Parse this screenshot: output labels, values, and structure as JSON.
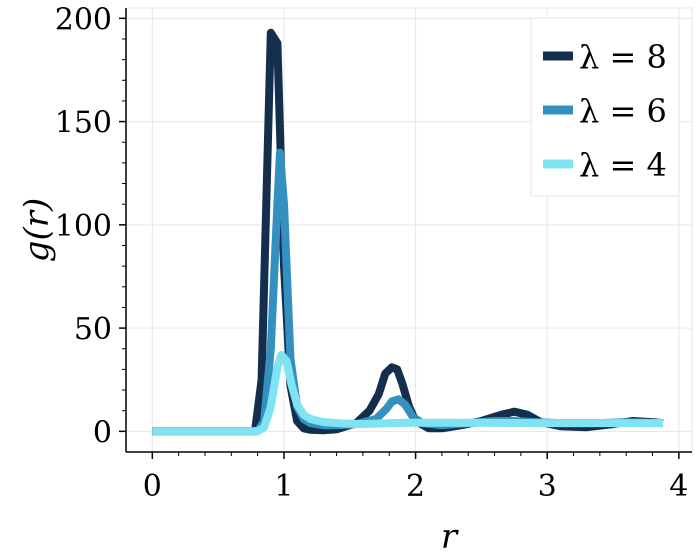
{
  "chart_data": {
    "type": "line",
    "xlabel": "r",
    "ylabel": "g(r)",
    "xlim": [
      -0.2,
      4.1
    ],
    "ylim": [
      -10,
      205
    ],
    "xticks": [
      0,
      1,
      2,
      3,
      4
    ],
    "yticks": [
      0,
      50,
      100,
      150,
      200
    ],
    "grid": true,
    "legend_position": "top-right",
    "series": [
      {
        "name": "λ = 8",
        "color": "#142f4d",
        "x": [
          0.0,
          0.78,
          0.83,
          0.87,
          0.9,
          0.95,
          1.0,
          1.05,
          1.1,
          1.15,
          1.2,
          1.3,
          1.4,
          1.55,
          1.65,
          1.72,
          1.77,
          1.82,
          1.86,
          1.9,
          1.95,
          2.0,
          2.1,
          2.2,
          2.35,
          2.5,
          2.65,
          2.75,
          2.85,
          2.95,
          3.1,
          3.3,
          3.5,
          3.65,
          3.8,
          3.88
        ],
        "y": [
          0,
          0,
          25,
          120,
          193,
          188,
          80,
          22,
          5,
          1.5,
          0.8,
          0.5,
          1,
          4,
          10,
          18,
          28,
          31,
          30,
          23,
          12,
          5,
          1.5,
          1.5,
          3,
          5,
          8,
          9.5,
          8,
          4.5,
          2.5,
          2,
          3.5,
          5,
          4.5,
          4
        ]
      },
      {
        "name": "λ = 6",
        "color": "#3491bf",
        "x": [
          0.0,
          0.8,
          0.85,
          0.9,
          0.95,
          0.97,
          1.0,
          1.05,
          1.1,
          1.15,
          1.2,
          1.3,
          1.4,
          1.55,
          1.7,
          1.78,
          1.82,
          1.87,
          1.92,
          1.98,
          2.05,
          2.2,
          2.4,
          2.6,
          2.75,
          2.9,
          3.1,
          3.4,
          3.6,
          3.88
        ],
        "y": [
          0,
          0,
          5,
          40,
          110,
          135,
          110,
          35,
          12,
          6,
          4,
          3,
          3,
          3.5,
          6,
          11,
          14.5,
          15.5,
          13,
          7,
          4,
          3,
          4,
          5,
          5,
          4.5,
          4,
          4,
          4.5,
          4
        ]
      },
      {
        "name": "λ = 4",
        "color": "#7fe3f2",
        "x": [
          0.0,
          0.8,
          0.85,
          0.9,
          0.95,
          0.98,
          1.02,
          1.06,
          1.1,
          1.15,
          1.2,
          1.3,
          1.45,
          1.6,
          1.8,
          2.0,
          2.3,
          2.6,
          3.0,
          3.4,
          3.88
        ],
        "y": [
          0,
          0,
          2,
          12,
          31,
          37,
          34,
          22,
          13,
          8,
          6,
          4.5,
          3.8,
          3.5,
          4,
          4.2,
          4.2,
          4.1,
          4,
          4,
          4
        ]
      }
    ]
  }
}
